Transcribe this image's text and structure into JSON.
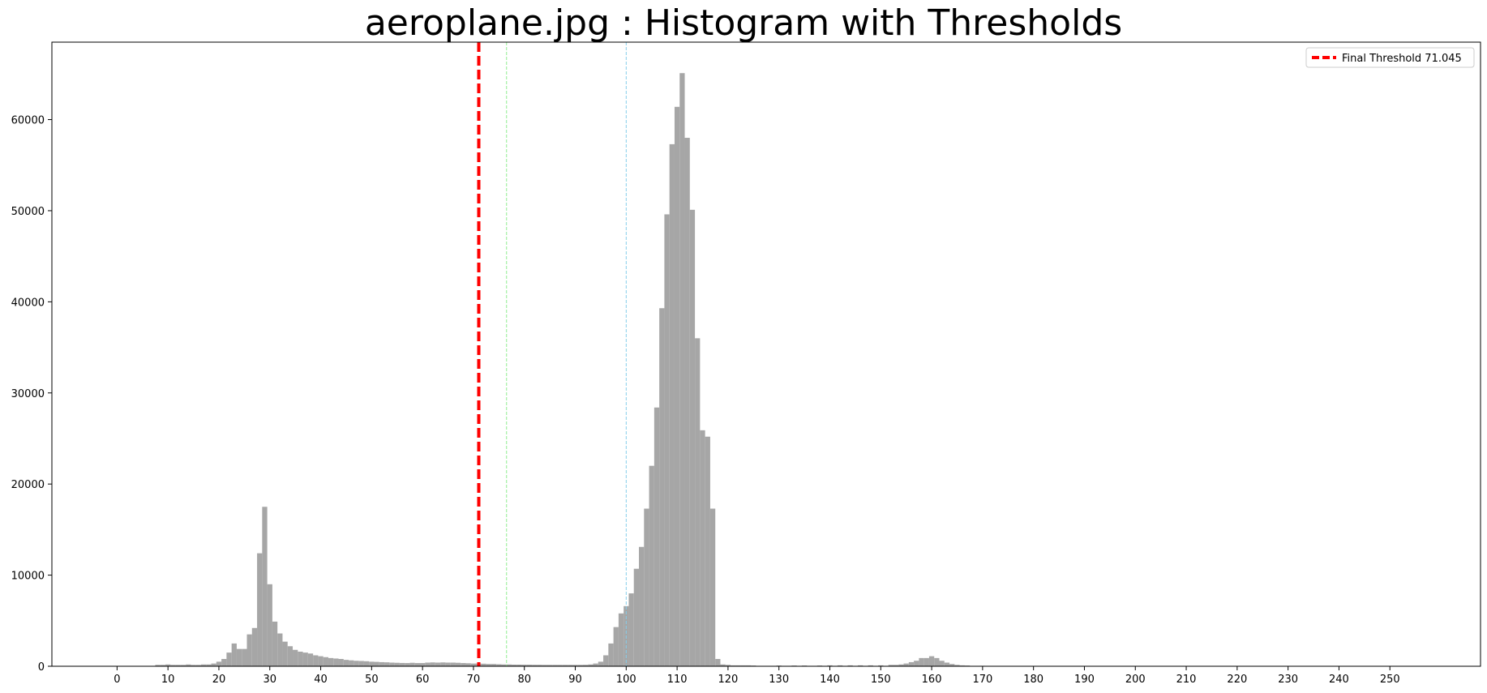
{
  "chart_data": {
    "type": "bar",
    "title": "aeroplane.jpg : Histogram with Thresholds",
    "xlabel": "",
    "ylabel": "",
    "xlim": [
      -12.8,
      267.8
    ],
    "ylim": [
      0,
      68500
    ],
    "xticks": [
      0,
      10,
      20,
      30,
      40,
      50,
      60,
      70,
      80,
      90,
      100,
      110,
      120,
      130,
      140,
      150,
      160,
      170,
      180,
      190,
      200,
      210,
      220,
      230,
      240,
      250
    ],
    "yticks": [
      0,
      10000,
      20000,
      30000,
      40000,
      50000,
      60000
    ],
    "grid": false,
    "legend_position": "top-right",
    "bar_color": "#a6a6a6",
    "bins": [
      {
        "x": 8,
        "y": 150
      },
      {
        "x": 9,
        "y": 150
      },
      {
        "x": 10,
        "y": 200
      },
      {
        "x": 11,
        "y": 150
      },
      {
        "x": 12,
        "y": 150
      },
      {
        "x": 13,
        "y": 150
      },
      {
        "x": 14,
        "y": 200
      },
      {
        "x": 15,
        "y": 150
      },
      {
        "x": 16,
        "y": 150
      },
      {
        "x": 17,
        "y": 200
      },
      {
        "x": 18,
        "y": 200
      },
      {
        "x": 19,
        "y": 300
      },
      {
        "x": 20,
        "y": 500
      },
      {
        "x": 21,
        "y": 800
      },
      {
        "x": 22,
        "y": 1500
      },
      {
        "x": 23,
        "y": 2500
      },
      {
        "x": 24,
        "y": 1900
      },
      {
        "x": 25,
        "y": 1900
      },
      {
        "x": 26,
        "y": 3500
      },
      {
        "x": 27,
        "y": 4200
      },
      {
        "x": 28,
        "y": 12400
      },
      {
        "x": 29,
        "y": 17500
      },
      {
        "x": 30,
        "y": 9000
      },
      {
        "x": 31,
        "y": 4900
      },
      {
        "x": 32,
        "y": 3600
      },
      {
        "x": 33,
        "y": 2700
      },
      {
        "x": 34,
        "y": 2200
      },
      {
        "x": 35,
        "y": 1800
      },
      {
        "x": 36,
        "y": 1600
      },
      {
        "x": 37,
        "y": 1500
      },
      {
        "x": 38,
        "y": 1400
      },
      {
        "x": 39,
        "y": 1200
      },
      {
        "x": 40,
        "y": 1100
      },
      {
        "x": 41,
        "y": 1000
      },
      {
        "x": 42,
        "y": 900
      },
      {
        "x": 43,
        "y": 850
      },
      {
        "x": 44,
        "y": 800
      },
      {
        "x": 45,
        "y": 700
      },
      {
        "x": 46,
        "y": 650
      },
      {
        "x": 47,
        "y": 600
      },
      {
        "x": 48,
        "y": 580
      },
      {
        "x": 49,
        "y": 550
      },
      {
        "x": 50,
        "y": 500
      },
      {
        "x": 51,
        "y": 480
      },
      {
        "x": 52,
        "y": 450
      },
      {
        "x": 53,
        "y": 430
      },
      {
        "x": 54,
        "y": 400
      },
      {
        "x": 55,
        "y": 380
      },
      {
        "x": 56,
        "y": 360
      },
      {
        "x": 57,
        "y": 350
      },
      {
        "x": 58,
        "y": 380
      },
      {
        "x": 59,
        "y": 350
      },
      {
        "x": 60,
        "y": 350
      },
      {
        "x": 61,
        "y": 400
      },
      {
        "x": 62,
        "y": 420
      },
      {
        "x": 63,
        "y": 400
      },
      {
        "x": 64,
        "y": 420
      },
      {
        "x": 65,
        "y": 400
      },
      {
        "x": 66,
        "y": 400
      },
      {
        "x": 67,
        "y": 380
      },
      {
        "x": 68,
        "y": 350
      },
      {
        "x": 69,
        "y": 330
      },
      {
        "x": 70,
        "y": 300
      },
      {
        "x": 71,
        "y": 300
      },
      {
        "x": 72,
        "y": 280
      },
      {
        "x": 73,
        "y": 250
      },
      {
        "x": 74,
        "y": 250
      },
      {
        "x": 75,
        "y": 220
      },
      {
        "x": 76,
        "y": 200
      },
      {
        "x": 77,
        "y": 200
      },
      {
        "x": 78,
        "y": 180
      },
      {
        "x": 79,
        "y": 180
      },
      {
        "x": 80,
        "y": 170
      },
      {
        "x": 81,
        "y": 170
      },
      {
        "x": 82,
        "y": 160
      },
      {
        "x": 83,
        "y": 160
      },
      {
        "x": 84,
        "y": 150
      },
      {
        "x": 85,
        "y": 150
      },
      {
        "x": 86,
        "y": 150
      },
      {
        "x": 87,
        "y": 150
      },
      {
        "x": 88,
        "y": 150
      },
      {
        "x": 89,
        "y": 150
      },
      {
        "x": 90,
        "y": 150
      },
      {
        "x": 91,
        "y": 150
      },
      {
        "x": 92,
        "y": 160
      },
      {
        "x": 93,
        "y": 200
      },
      {
        "x": 94,
        "y": 300
      },
      {
        "x": 95,
        "y": 500
      },
      {
        "x": 96,
        "y": 1200
      },
      {
        "x": 97,
        "y": 2500
      },
      {
        "x": 98,
        "y": 4300
      },
      {
        "x": 99,
        "y": 5800
      },
      {
        "x": 100,
        "y": 6600
      },
      {
        "x": 101,
        "y": 8000
      },
      {
        "x": 102,
        "y": 10700
      },
      {
        "x": 103,
        "y": 13100
      },
      {
        "x": 104,
        "y": 17300
      },
      {
        "x": 105,
        "y": 22000
      },
      {
        "x": 106,
        "y": 28400
      },
      {
        "x": 107,
        "y": 39300
      },
      {
        "x": 108,
        "y": 49600
      },
      {
        "x": 109,
        "y": 57300
      },
      {
        "x": 110,
        "y": 61400
      },
      {
        "x": 111,
        "y": 65100
      },
      {
        "x": 112,
        "y": 58000
      },
      {
        "x": 113,
        "y": 50100
      },
      {
        "x": 114,
        "y": 36000
      },
      {
        "x": 115,
        "y": 25900
      },
      {
        "x": 116,
        "y": 25200
      },
      {
        "x": 117,
        "y": 17300
      },
      {
        "x": 118,
        "y": 800
      },
      {
        "x": 119,
        "y": 200
      },
      {
        "x": 120,
        "y": 150
      },
      {
        "x": 121,
        "y": 100
      },
      {
        "x": 122,
        "y": 100
      },
      {
        "x": 123,
        "y": 100
      },
      {
        "x": 124,
        "y": 100
      },
      {
        "x": 125,
        "y": 80
      },
      {
        "x": 130,
        "y": 80
      },
      {
        "x": 133,
        "y": 80
      },
      {
        "x": 135,
        "y": 80
      },
      {
        "x": 138,
        "y": 80
      },
      {
        "x": 140,
        "y": 100
      },
      {
        "x": 142,
        "y": 100
      },
      {
        "x": 144,
        "y": 100
      },
      {
        "x": 146,
        "y": 100
      },
      {
        "x": 148,
        "y": 100
      },
      {
        "x": 150,
        "y": 100
      },
      {
        "x": 152,
        "y": 150
      },
      {
        "x": 153,
        "y": 150
      },
      {
        "x": 154,
        "y": 200
      },
      {
        "x": 155,
        "y": 300
      },
      {
        "x": 156,
        "y": 450
      },
      {
        "x": 157,
        "y": 600
      },
      {
        "x": 158,
        "y": 900
      },
      {
        "x": 159,
        "y": 900
      },
      {
        "x": 160,
        "y": 1100
      },
      {
        "x": 161,
        "y": 900
      },
      {
        "x": 162,
        "y": 600
      },
      {
        "x": 163,
        "y": 400
      },
      {
        "x": 164,
        "y": 250
      },
      {
        "x": 165,
        "y": 150
      },
      {
        "x": 166,
        "y": 100
      },
      {
        "x": 167,
        "y": 80
      },
      {
        "x": 170,
        "y": 50
      }
    ],
    "threshold_lines": [
      {
        "x": 71.045,
        "color": "#ff0000",
        "style": "dashed",
        "legend": "Final Threshold 71.045"
      },
      {
        "x": 76.5,
        "color": "#90ee90",
        "style": "dashed",
        "legend": ""
      },
      {
        "x": 100.0,
        "color": "#87ceeb",
        "style": "dashed",
        "legend": ""
      }
    ]
  }
}
